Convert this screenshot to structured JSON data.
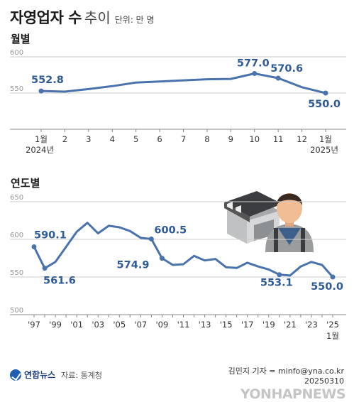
{
  "header": {
    "title": "자영업자 수",
    "subtitle": "추이",
    "unit": "단위: 만 명"
  },
  "colors": {
    "line": "#4a73ad",
    "label": "#2e5a96",
    "grid": "#cccccc",
    "axis": "#888888"
  },
  "chart_data": [
    {
      "type": "line",
      "title": "월별",
      "x": [
        "1월",
        "2",
        "3",
        "4",
        "5",
        "6",
        "7",
        "8",
        "9",
        "10",
        "11",
        "12",
        "1월"
      ],
      "x_sub": [
        "2024년",
        "",
        "",
        "",
        "",
        "",
        "",
        "",
        "",
        "",
        "",
        "",
        "2025년"
      ],
      "values": [
        552.8,
        552.0,
        555.5,
        559.5,
        564.5,
        566.0,
        567.5,
        569.0,
        569.5,
        577.0,
        570.6,
        558.0,
        550.0
      ],
      "labels": {
        "0": "552.8",
        "9": "577.0",
        "10": "570.6",
        "12": "550.0"
      },
      "ylim": [
        500,
        600
      ],
      "yticks": [
        550,
        600
      ],
      "grid": true
    },
    {
      "type": "line",
      "title": "연도별",
      "x": [
        "'97",
        "'98",
        "'99",
        "'00",
        "'01",
        "'02",
        "'03",
        "'04",
        "'05",
        "'06",
        "'07",
        "'08",
        "'09",
        "'10",
        "'11",
        "'12",
        "'13",
        "'14",
        "'15",
        "'16",
        "'17",
        "'18",
        "'19",
        "'20",
        "'21",
        "'22",
        "'23",
        "'24",
        "'25"
      ],
      "x_tick_labels": [
        "'97",
        "",
        "'99",
        "",
        "'01",
        "",
        "'03",
        "",
        "'05",
        "",
        "'07",
        "",
        "'09",
        "",
        "'11",
        "",
        "'13",
        "",
        "'15",
        "",
        "'17",
        "",
        "'19",
        "",
        "'21",
        "",
        "'23",
        "",
        "'25"
      ],
      "x_sub_last": "1월",
      "values": [
        590.1,
        561.6,
        570.0,
        590.0,
        610.0,
        622.0,
        608.0,
        618.0,
        616.0,
        611.0,
        602.0,
        600.5,
        574.9,
        566.0,
        567.0,
        578.0,
        572.0,
        574.0,
        563.0,
        562.0,
        569.0,
        564.0,
        560.0,
        553.1,
        552.0,
        564.0,
        570.0,
        566.0,
        550.0
      ],
      "labels": {
        "0": "590.1",
        "1": "561.6",
        "11": "600.5",
        "12": "574.9",
        "23": "553.1",
        "28": "550.0"
      },
      "ylim": [
        500,
        650
      ],
      "yticks": [
        500,
        550,
        600,
        650
      ],
      "grid": true
    }
  ],
  "footer": {
    "brand": "연합뉴스",
    "source": "자료: 통계청",
    "credit": "김민지 기자 = minfo@yna.co.kr",
    "date": "20250310",
    "watermark": "YONHAPNEWS"
  }
}
